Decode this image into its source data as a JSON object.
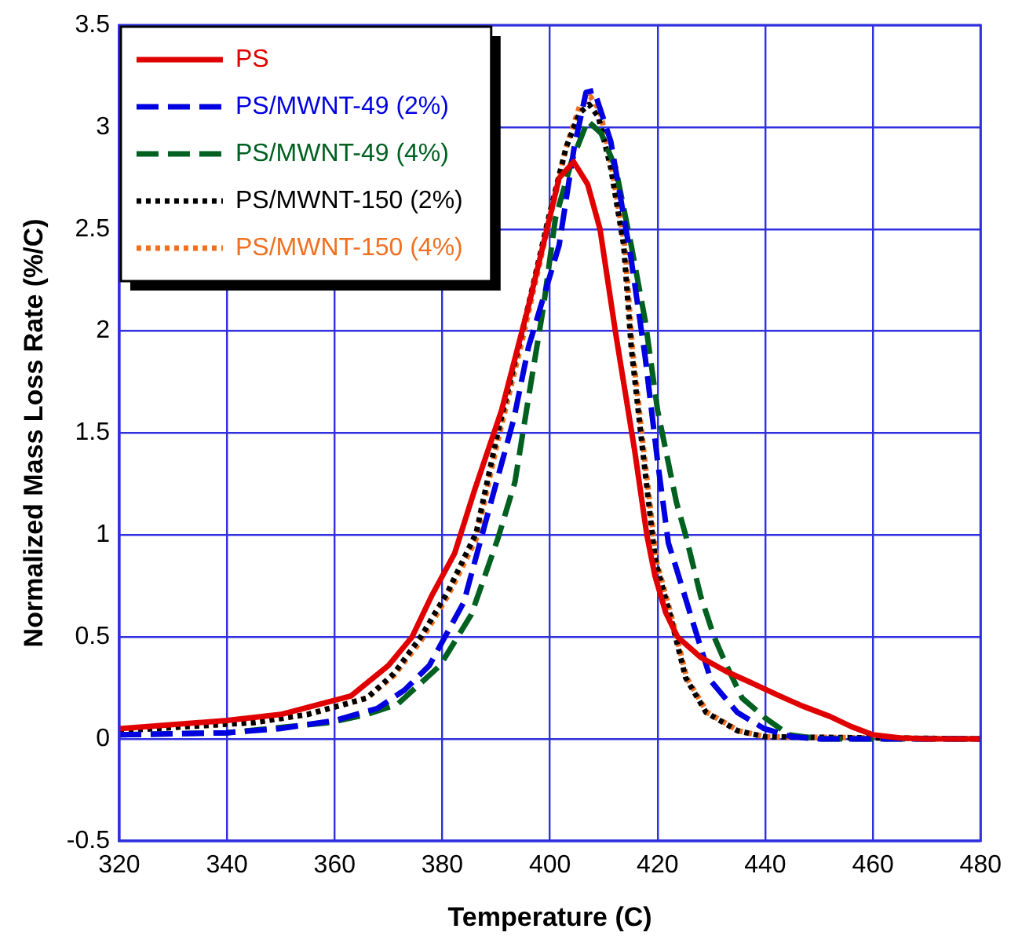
{
  "chart_data": {
    "type": "line",
    "xlabel": "Temperature (C)",
    "ylabel": "Normalized Mass Loss Rate (%/C)",
    "xlim": [
      320,
      480
    ],
    "xticks": [
      320,
      340,
      360,
      380,
      400,
      420,
      440,
      460,
      480
    ],
    "ylim": [
      -0.5,
      3.5
    ],
    "yticks": [
      -0.5,
      0,
      0.5,
      1,
      1.5,
      2,
      2.5,
      3,
      3.5
    ],
    "grid": true,
    "legend": "top left",
    "marker": "none",
    "series": [
      {
        "name": "PS",
        "color": "#e00000",
        "line_style": "solid",
        "x": [
          320,
          340,
          350,
          363,
          370,
          374.4,
          378,
          382.3,
          386,
          391,
          396,
          399,
          401.7,
          404.4,
          407,
          409.3,
          412.2,
          415.7,
          418,
          419.5,
          421.5,
          423.7,
          428,
          432.8,
          437,
          442.7,
          447,
          452,
          456,
          460,
          465,
          470,
          480
        ],
        "values": [
          0.05,
          0.09,
          0.12,
          0.21,
          0.36,
          0.5,
          0.7,
          0.91,
          1.22,
          1.61,
          2.12,
          2.45,
          2.75,
          2.83,
          2.72,
          2.5,
          1.99,
          1.42,
          1.0,
          0.8,
          0.62,
          0.5,
          0.4,
          0.33,
          0.28,
          0.21,
          0.16,
          0.11,
          0.06,
          0.02,
          0.005,
          0,
          0
        ]
      },
      {
        "name": "PS/MWNT-49 (2%)",
        "color": "#0000e0",
        "line_style": "dashed",
        "x": [
          320,
          340,
          349.7,
          360,
          368,
          373,
          377.6,
          384,
          387.8,
          393.3,
          396,
          401.7,
          404.5,
          406.7,
          408.2,
          411.3,
          415.1,
          417.7,
          420,
          422,
          423.2,
          426.1,
          430,
          434.8,
          439.8,
          445,
          450,
          480
        ],
        "values": [
          0.02,
          0.03,
          0.05,
          0.09,
          0.15,
          0.24,
          0.36,
          0.67,
          1.04,
          1.57,
          1.92,
          2.42,
          2.9,
          3.17,
          3.18,
          2.93,
          2.35,
          1.87,
          1.36,
          0.96,
          0.86,
          0.61,
          0.28,
          0.13,
          0.05,
          0.01,
          0,
          0
        ]
      },
      {
        "name": "PS/MWNT-49 (4%)",
        "color": "#006020",
        "line_style": "dashed",
        "x": [
          320,
          340,
          359.2,
          366,
          371.7,
          379.6,
          385.4,
          390.3,
          393.5,
          396,
          398.8,
          401,
          404,
          407,
          409.5,
          412.2,
          415.1,
          417.7,
          420,
          423.5,
          425.2,
          428,
          430.5,
          432.8,
          435.7,
          440.1,
          444.4,
          450,
          480
        ],
        "values": [
          0.02,
          0.03,
          0.08,
          0.12,
          0.17,
          0.36,
          0.61,
          0.98,
          1.26,
          1.67,
          2.12,
          2.55,
          2.83,
          3.03,
          2.97,
          2.8,
          2.42,
          2.05,
          1.61,
          1.16,
          1.0,
          0.7,
          0.5,
          0.36,
          0.2,
          0.1,
          0.02,
          0,
          0
        ]
      },
      {
        "name": "PS/MWNT-150 (2%)",
        "color": "#000000",
        "line_style": "dotted",
        "x": [
          320,
          345,
          355,
          366,
          371,
          376,
          381,
          386.3,
          390.2,
          394.8,
          399.7,
          403,
          405.5,
          407.3,
          409,
          411.3,
          413.7,
          415.1,
          417.2,
          419.2,
          419.7,
          422.3,
          425.2,
          429,
          434.8,
          440,
          480
        ],
        "values": [
          0.04,
          0.08,
          0.12,
          0.2,
          0.32,
          0.5,
          0.72,
          1.01,
          1.49,
          1.99,
          2.55,
          2.9,
          3.07,
          3.11,
          3.05,
          2.8,
          2.42,
          1.92,
          1.42,
          0.96,
          0.86,
          0.61,
          0.3,
          0.13,
          0.04,
          0.01,
          0
        ]
      },
      {
        "name": "PS/MWNT-150 (4%)",
        "color": "#f07020",
        "line_style": "dotted",
        "x": [
          320,
          345,
          355,
          366,
          371,
          376,
          381,
          386.3,
          390.2,
          394.8,
          399.7,
          403,
          405.5,
          407.5,
          409.3,
          411.5,
          413.9,
          415.3,
          417.4,
          419.4,
          419.9,
          422.5,
          425.4,
          429.2,
          435,
          440,
          480
        ],
        "values": [
          0.04,
          0.08,
          0.12,
          0.2,
          0.31,
          0.48,
          0.7,
          0.98,
          1.45,
          1.95,
          2.52,
          2.9,
          3.1,
          3.15,
          3.08,
          2.8,
          2.42,
          1.92,
          1.42,
          0.96,
          0.86,
          0.61,
          0.3,
          0.13,
          0.04,
          0.01,
          0
        ]
      }
    ]
  }
}
